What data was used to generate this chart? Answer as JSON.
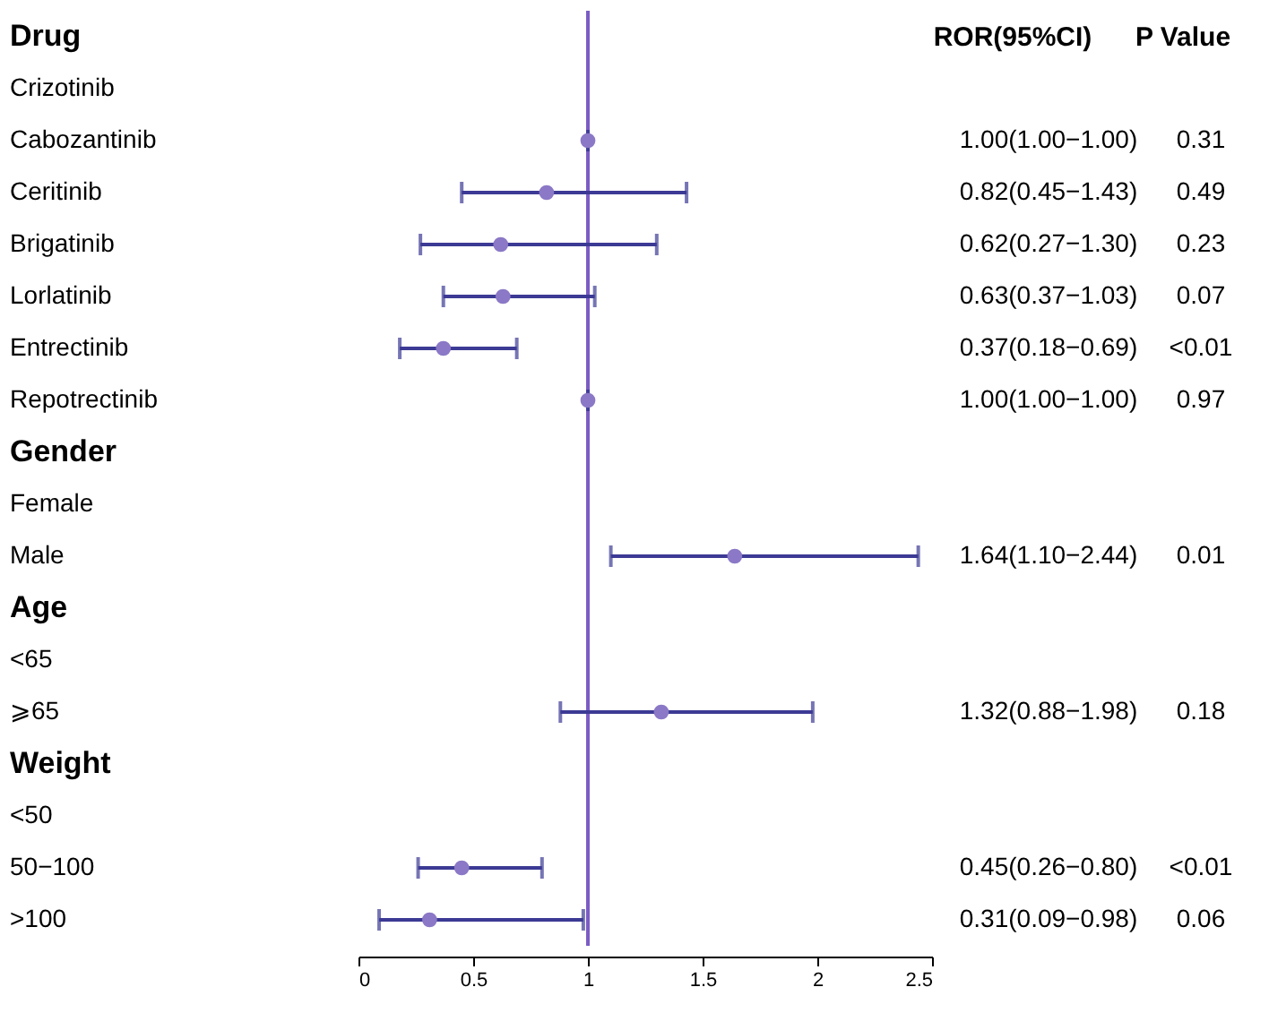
{
  "chart_data": {
    "type": "scatter",
    "orientation": "horizontal",
    "categories": [
      "Drug",
      "Crizotinib",
      "Cabozantinib",
      "Ceritinib",
      "Brigatinib",
      "Lorlatinib",
      "Entrectinib",
      "Repotrectinib",
      "Gender",
      "Female",
      "Male",
      "Age",
      "<65",
      "⩾65",
      "Weight",
      "<50",
      "50−100",
      ">100"
    ],
    "series": [
      {
        "color": "#8b78c6",
        "values": [
          null,
          null,
          1.0,
          0.82,
          0.62,
          0.63,
          0.37,
          1.0,
          null,
          null,
          1.64,
          null,
          null,
          1.32,
          null,
          null,
          0.45,
          0.31
        ],
        "errors": [
          null,
          null,
          [
            1.0,
            1.0
          ],
          [
            0.45,
            1.43
          ],
          [
            0.27,
            1.3
          ],
          [
            0.37,
            1.03
          ],
          [
            0.18,
            0.69
          ],
          [
            1.0,
            1.0
          ],
          null,
          null,
          [
            1.1,
            2.44
          ],
          null,
          null,
          [
            0.88,
            1.98
          ],
          null,
          null,
          [
            0.26,
            0.8
          ],
          [
            0.09,
            0.98
          ]
        ],
        "value_labels": [
          null,
          null,
          "1.00(1.00−1.00)",
          "0.82(0.45−1.43)",
          "0.62(0.27−1.30)",
          "0.63(0.37−1.03)",
          "0.37(0.18−0.69)",
          "1.00(1.00−1.00)",
          null,
          null,
          "1.64(1.10−2.44)",
          null,
          null,
          "1.32(0.88−1.98)",
          null,
          null,
          "0.45(0.26−0.80)",
          "0.31(0.09−0.98)"
        ]
      }
    ],
    "xlim": [
      0,
      2.5
    ],
    "xticks": [
      0,
      0.5,
      1,
      1.5,
      2,
      2.5
    ],
    "ref_lines": [
      {
        "axis": "x",
        "value": 1,
        "color": "#7b5cc4"
      }
    ],
    "grid": false,
    "marker": "circle",
    "annotations": [
      "ROR(95%CI)",
      "P Value",
      "0.31",
      "0.49",
      "0.23",
      "0.07",
      "<0.01",
      "0.97",
      "0.01",
      "0.18",
      "<0.01",
      "0.06"
    ]
  }
}
